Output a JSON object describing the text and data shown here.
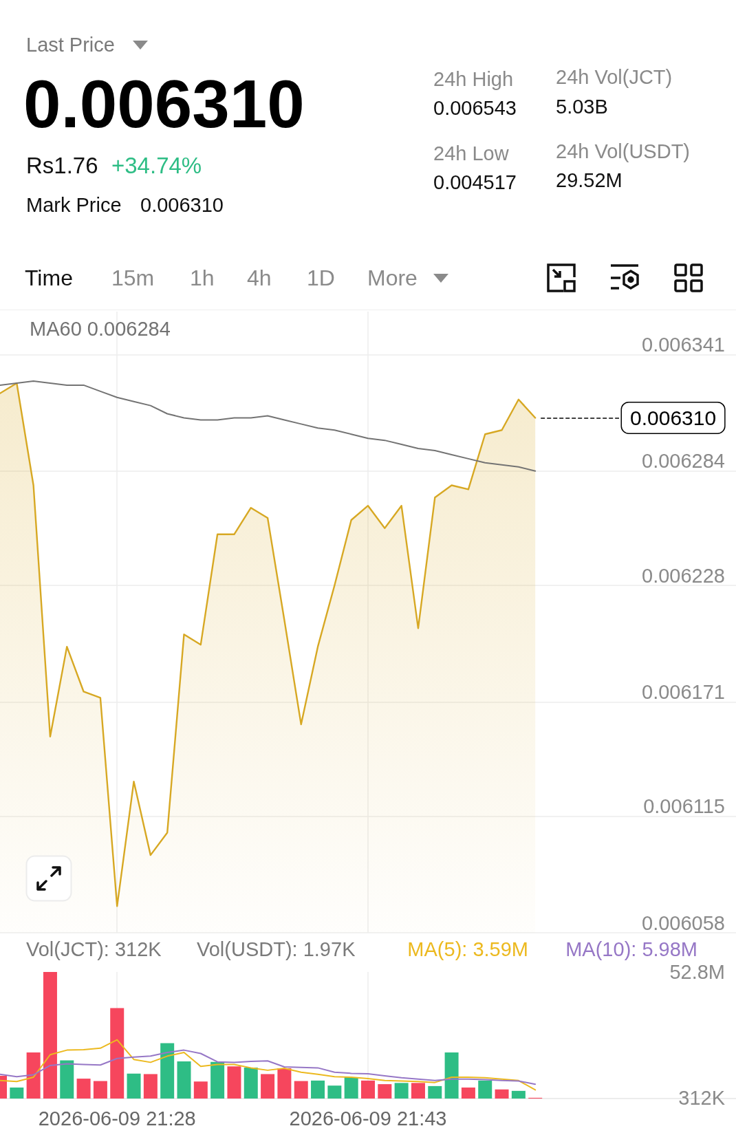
{
  "chart_data": [
    {
      "type": "other",
      "annotations": [
        "Last Price",
        "0.006310",
        "Rs1.76",
        "+34.74%",
        "Mark Price",
        "0.006310",
        "24h High",
        "0.006543",
        "24h Low",
        "0.004517",
        "24h Vol(JCT)",
        "5.03B",
        "24h Vol(USDT)",
        "29.52M",
        "Time",
        "15m",
        "1h",
        "4h",
        "1D",
        "More"
      ]
    },
    {
      "type": "line",
      "x": [
        "2026-06-09T21:21",
        "2026-06-09T21:22",
        "2026-06-09T21:23",
        "2026-06-09T21:24",
        "2026-06-09T21:25",
        "2026-06-09T21:26",
        "2026-06-09T21:27",
        "2026-06-09T21:28",
        "2026-06-09T21:29",
        "2026-06-09T21:30",
        "2026-06-09T21:31",
        "2026-06-09T21:32",
        "2026-06-09T21:33",
        "2026-06-09T21:34",
        "2026-06-09T21:35",
        "2026-06-09T21:36",
        "2026-06-09T21:37",
        "2026-06-09T21:38",
        "2026-06-09T21:39",
        "2026-06-09T21:40",
        "2026-06-09T21:41",
        "2026-06-09T21:42",
        "2026-06-09T21:43",
        "2026-06-09T21:44",
        "2026-06-09T21:45",
        "2026-06-09T21:46",
        "2026-06-09T21:47",
        "2026-06-09T21:48",
        "2026-06-09T21:49",
        "2026-06-09T21:50",
        "2026-06-09T21:51",
        "2026-06-09T21:52",
        "2026-06-09T21:53"
      ],
      "series": [
        {
          "type": "area",
          "color": "#d7a823",
          "values": [
            0.006322,
            0.006327,
            0.006277,
            0.006154,
            0.006198,
            0.006176,
            0.006173,
            0.006071,
            0.006132,
            0.006096,
            0.006107,
            0.006204,
            0.006199,
            0.006253,
            0.006253,
            0.006266,
            0.006261,
            0.006211,
            0.00616,
            0.006198,
            0.006228,
            0.00626,
            0.006267,
            0.006256,
            0.006267,
            0.006207,
            0.006271,
            0.006277,
            0.006275,
            0.006302,
            0.006304,
            0.006319,
            0.00631
          ]
        },
        {
          "type": "line",
          "name": "MA60 0.006284",
          "color": "#737373",
          "values": [
            0.006326,
            0.006327,
            0.006328,
            0.006327,
            0.006326,
            0.006326,
            0.006323,
            0.00632,
            0.006318,
            0.006316,
            0.006312,
            0.00631,
            0.006309,
            0.006309,
            0.00631,
            0.00631,
            0.006311,
            0.006309,
            0.006307,
            0.006305,
            0.006304,
            0.006302,
            0.0063,
            0.006299,
            0.006297,
            0.006295,
            0.006294,
            0.006292,
            0.00629,
            0.006288,
            0.006287,
            0.006286,
            0.006284
          ]
        }
      ],
      "xlim": [
        "2026-06-09T21:21",
        "2026-06-09T22:05"
      ],
      "xticks": [
        {
          "value": "2026-06-09T21:28",
          "label": null
        },
        {
          "value": "2026-06-09T21:43",
          "label": null
        }
      ],
      "ylim": [
        0.006058,
        0.006362
      ],
      "yticks": [
        0.006058,
        0.006115,
        0.006171,
        0.006228,
        0.006284,
        0.006341
      ],
      "ref_lines": [
        {
          "axis": "y",
          "value": 0.00631,
          "label": "0.006310",
          "line_style": "dashed",
          "color": "#000000"
        }
      ],
      "tick_labels": "y",
      "grid": true,
      "legend": "top left",
      "marker": "none"
    },
    {
      "type": "bar",
      "x": [
        "2026-06-09T21:21",
        "2026-06-09T21:22",
        "2026-06-09T21:23",
        "2026-06-09T21:24",
        "2026-06-09T21:25",
        "2026-06-09T21:26",
        "2026-06-09T21:27",
        "2026-06-09T21:28",
        "2026-06-09T21:29",
        "2026-06-09T21:30",
        "2026-06-09T21:31",
        "2026-06-09T21:32",
        "2026-06-09T21:33",
        "2026-06-09T21:34",
        "2026-06-09T21:35",
        "2026-06-09T21:36",
        "2026-06-09T21:37",
        "2026-06-09T21:38",
        "2026-06-09T21:39",
        "2026-06-09T21:40",
        "2026-06-09T21:41",
        "2026-06-09T21:42",
        "2026-06-09T21:43",
        "2026-06-09T21:44",
        "2026-06-09T21:45",
        "2026-06-09T21:46",
        "2026-06-09T21:47",
        "2026-06-09T21:48",
        "2026-06-09T21:49",
        "2026-06-09T21:50",
        "2026-06-09T21:51",
        "2026-06-09T21:52",
        "2026-06-09T21:53"
      ],
      "series": [
        {
          "type": "bar",
          "values": [
            9500000,
            4600000,
            19200000,
            52800000,
            15900000,
            8300000,
            7300000,
            37700000,
            10400000,
            10200000,
            23100000,
            15500000,
            7100000,
            15300000,
            13400000,
            12900000,
            10200000,
            12600000,
            7300000,
            7500000,
            5400000,
            8900000,
            7500000,
            6000000,
            6500000,
            6500000,
            5200000,
            19200000,
            4600000,
            7500000,
            3800000,
            3200000,
            312000
          ],
          "colors": [
            "#f6465d",
            "#2ebd85",
            "#f6465d",
            "#f6465d",
            "#2ebd85",
            "#f6465d",
            "#f6465d",
            "#f6465d",
            "#2ebd85",
            "#f6465d",
            "#2ebd85",
            "#2ebd85",
            "#f6465d",
            "#2ebd85",
            "#f6465d",
            "#2ebd85",
            "#f6465d",
            "#f6465d",
            "#f6465d",
            "#2ebd85",
            "#2ebd85",
            "#2ebd85",
            "#f6465d",
            "#f6465d",
            "#2ebd85",
            "#f6465d",
            "#2ebd85",
            "#2ebd85",
            "#f6465d",
            "#2ebd85",
            "#f6465d",
            "#2ebd85",
            "#f6465d"
          ]
        },
        {
          "type": "line",
          "name": "MA(5): 3.59M",
          "color": "#ecb91f",
          "values": [
            7500000,
            7100000,
            8900000,
            18300000,
            20200000,
            20400000,
            21000000,
            24500000,
            16300000,
            15100000,
            17700000,
            19200000,
            13400000,
            14200000,
            14200000,
            12800000,
            11800000,
            12600000,
            11000000,
            10100000,
            9100000,
            8900000,
            8300000,
            7500000,
            7300000,
            7100000,
            6700000,
            8900000,
            8900000,
            8700000,
            8100000,
            7500000,
            3590000
          ]
        },
        {
          "type": "line",
          "name": "MA(10): 5.98M",
          "color": "#9677c6",
          "values": [
            10100000,
            9100000,
            9900000,
            13800000,
            14500000,
            14200000,
            14000000,
            16700000,
            17300000,
            17700000,
            19200000,
            20200000,
            18800000,
            15300000,
            15100000,
            15500000,
            15700000,
            13200000,
            13000000,
            12800000,
            11000000,
            10500000,
            10300000,
            9500000,
            8700000,
            8100000,
            7500000,
            8100000,
            8100000,
            7900000,
            7500000,
            7300000,
            5980000
          ]
        }
      ],
      "annotations": [
        "Vol(JCT): 312K",
        "Vol(USDT): 1.97K"
      ],
      "xlim": [
        "2026-06-09T21:21",
        "2026-06-09T22:05"
      ],
      "xticks": [
        {
          "value": "2026-06-09T21:28",
          "label": "2026-06-09 21:28"
        },
        {
          "value": "2026-06-09T21:43",
          "label": "2026-06-09 21:43"
        }
      ],
      "ylim": [
        0,
        52800000
      ],
      "yticks": [
        {
          "value": 312000,
          "label": "312K"
        },
        {
          "value": 52800000,
          "label": "52.8M"
        }
      ],
      "grid": "x",
      "legend": "top right",
      "marker": "none"
    }
  ]
}
